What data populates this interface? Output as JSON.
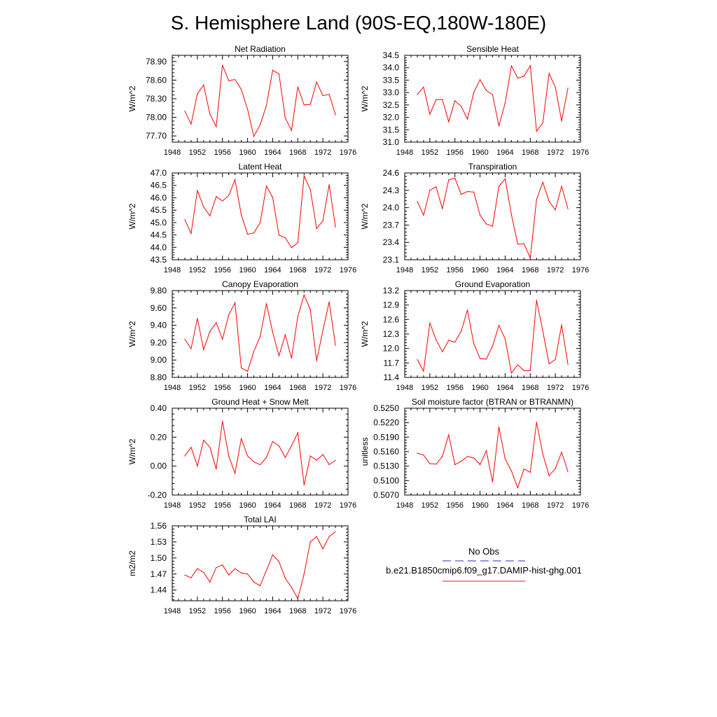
{
  "title": "S. Hemisphere Land (90S-EQ,180W-180E)",
  "legend": {
    "items": [
      {
        "label": "No Obs",
        "color": "#2b2bd0",
        "dash": "dashed"
      },
      {
        "label": "b.e21.B1850cmip6.f09_g17.DAMIP-hist-ghg.001",
        "color": "#e31a1c",
        "dash": "solid"
      }
    ]
  },
  "chart_data": [
    {
      "type": "line",
      "title": "Net Radiation",
      "ylabel": "W/m^2",
      "xlim": [
        1948,
        1976
      ],
      "xticks": [
        1948,
        1952,
        1956,
        1960,
        1964,
        1968,
        1972,
        1976
      ],
      "ylim": [
        77.6,
        79.0
      ],
      "yticks": [
        "77.70",
        "78.00",
        "78.30",
        "78.60",
        "78.90"
      ],
      "x": [
        1950,
        1951,
        1952,
        1953,
        1954,
        1955,
        1956,
        1957,
        1958,
        1959,
        1960,
        1961,
        1962,
        1963,
        1964,
        1965,
        1966,
        1967,
        1968,
        1969,
        1970,
        1971,
        1972,
        1973,
        1974
      ],
      "series": [
        {
          "color": "#ff0000",
          "values": [
            78.1,
            77.89,
            78.38,
            78.52,
            78.05,
            77.85,
            78.84,
            78.59,
            78.61,
            78.45,
            78.13,
            77.69,
            77.88,
            78.19,
            78.76,
            78.7,
            77.99,
            77.79,
            78.49,
            78.2,
            78.21,
            78.57,
            78.35,
            78.37,
            78.04
          ]
        }
      ]
    },
    {
      "type": "line",
      "title": "Sensible Heat",
      "ylabel": "W/m^2",
      "xlim": [
        1948,
        1976
      ],
      "xticks": [
        1948,
        1952,
        1956,
        1960,
        1964,
        1968,
        1972,
        1976
      ],
      "ylim": [
        31.0,
        34.5
      ],
      "yticks": [
        "31.0",
        "31.5",
        "32.0",
        "32.5",
        "33.0",
        "33.5",
        "34.0",
        "34.5"
      ],
      "x": [
        1950,
        1951,
        1952,
        1953,
        1954,
        1955,
        1956,
        1957,
        1958,
        1959,
        1960,
        1961,
        1962,
        1963,
        1964,
        1965,
        1966,
        1967,
        1968,
        1969,
        1970,
        1971,
        1972,
        1973,
        1974
      ],
      "series": [
        {
          "color": "#ff0000",
          "values": [
            32.92,
            33.22,
            32.13,
            32.71,
            32.72,
            31.82,
            32.67,
            32.44,
            31.93,
            33.0,
            33.52,
            33.08,
            32.92,
            31.65,
            32.57,
            34.08,
            33.58,
            33.66,
            34.08,
            31.44,
            31.78,
            33.77,
            33.21,
            31.85,
            33.18
          ]
        }
      ]
    },
    {
      "type": "line",
      "title": "Latent Heat",
      "ylabel": "W/m^2",
      "xlim": [
        1948,
        1976
      ],
      "xticks": [
        1948,
        1952,
        1956,
        1960,
        1964,
        1968,
        1972,
        1976
      ],
      "ylim": [
        43.5,
        47.0
      ],
      "yticks": [
        "43.5",
        "44.0",
        "44.5",
        "45.0",
        "45.5",
        "46.0",
        "46.5",
        "47.0"
      ],
      "x": [
        1950,
        1951,
        1952,
        1953,
        1954,
        1955,
        1956,
        1957,
        1958,
        1959,
        1960,
        1961,
        1962,
        1963,
        1964,
        1965,
        1966,
        1967,
        1968,
        1969,
        1970,
        1971,
        1972,
        1973,
        1974
      ],
      "series": [
        {
          "color": "#ff0000",
          "values": [
            45.12,
            44.56,
            46.29,
            45.63,
            45.27,
            46.05,
            45.87,
            46.09,
            46.73,
            45.31,
            44.53,
            44.58,
            44.99,
            46.47,
            46.01,
            44.49,
            44.39,
            43.99,
            44.19,
            46.88,
            46.33,
            44.76,
            45.07,
            46.53,
            44.82
          ]
        }
      ]
    },
    {
      "type": "line",
      "title": "Transpiration",
      "ylabel": "W/m^2",
      "xlim": [
        1948,
        1976
      ],
      "xticks": [
        1948,
        1952,
        1956,
        1960,
        1964,
        1968,
        1972,
        1976
      ],
      "ylim": [
        23.1,
        24.6
      ],
      "yticks": [
        "23.1",
        "23.4",
        "23.7",
        "24.0",
        "24.3",
        "24.6"
      ],
      "x": [
        1950,
        1951,
        1952,
        1953,
        1954,
        1955,
        1956,
        1957,
        1958,
        1959,
        1960,
        1961,
        1962,
        1963,
        1964,
        1965,
        1966,
        1967,
        1968,
        1969,
        1970,
        1971,
        1972,
        1973,
        1974
      ],
      "series": [
        {
          "color": "#ff0000",
          "values": [
            24.11,
            23.87,
            24.3,
            24.36,
            23.98,
            24.48,
            24.51,
            24.23,
            24.28,
            24.27,
            23.87,
            23.72,
            23.68,
            24.37,
            24.5,
            23.88,
            23.37,
            23.38,
            23.13,
            24.14,
            24.44,
            24.11,
            23.96,
            24.37,
            23.98
          ]
        }
      ]
    },
    {
      "type": "line",
      "title": "Canopy Evaporation",
      "ylabel": "W/m^2",
      "xlim": [
        1948,
        1976
      ],
      "xticks": [
        1948,
        1952,
        1956,
        1960,
        1964,
        1968,
        1972,
        1976
      ],
      "ylim": [
        8.8,
        9.8
      ],
      "yticks": [
        "8.80",
        "9.00",
        "9.20",
        "9.40",
        "9.60",
        "9.80"
      ],
      "x": [
        1950,
        1951,
        1952,
        1953,
        1954,
        1955,
        1956,
        1957,
        1958,
        1959,
        1960,
        1961,
        1962,
        1963,
        1964,
        1965,
        1966,
        1967,
        1968,
        1969,
        1970,
        1971,
        1972,
        1973,
        1974
      ],
      "series": [
        {
          "color": "#ff0000",
          "values": [
            9.24,
            9.13,
            9.48,
            9.12,
            9.33,
            9.43,
            9.24,
            9.52,
            9.66,
            8.91,
            8.87,
            9.1,
            9.27,
            9.65,
            9.32,
            9.05,
            9.29,
            9.02,
            9.5,
            9.75,
            9.58,
            8.99,
            9.34,
            9.67,
            9.17
          ]
        }
      ]
    },
    {
      "type": "line",
      "title": "Ground Evaporation",
      "ylabel": "W/m^2",
      "xlim": [
        1948,
        1976
      ],
      "xticks": [
        1948,
        1952,
        1956,
        1960,
        1964,
        1968,
        1972,
        1976
      ],
      "ylim": [
        11.4,
        13.2
      ],
      "yticks": [
        "11.4",
        "11.7",
        "12.0",
        "12.3",
        "12.6",
        "12.9",
        "13.2"
      ],
      "x": [
        1950,
        1951,
        1952,
        1953,
        1954,
        1955,
        1956,
        1957,
        1958,
        1959,
        1960,
        1961,
        1962,
        1963,
        1964,
        1965,
        1966,
        1967,
        1968,
        1969,
        1970,
        1971,
        1972,
        1973,
        1974
      ],
      "series": [
        {
          "color": "#ff0000",
          "values": [
            11.77,
            11.53,
            12.53,
            12.18,
            11.93,
            12.17,
            12.13,
            12.36,
            12.8,
            12.1,
            11.79,
            11.78,
            12.05,
            12.48,
            12.2,
            11.49,
            11.66,
            11.54,
            11.54,
            13.0,
            12.36,
            11.68,
            11.77,
            12.49,
            11.67
          ]
        }
      ]
    },
    {
      "type": "line",
      "title": "Ground Heat + Snow Melt",
      "ylabel": "W/m^2",
      "xlim": [
        1948,
        1976
      ],
      "xticks": [
        1948,
        1952,
        1956,
        1960,
        1964,
        1968,
        1972,
        1976
      ],
      "ylim": [
        -0.2,
        0.4
      ],
      "yticks": [
        "-0.20",
        "0.00",
        "0.20",
        "0.40"
      ],
      "x": [
        1950,
        1951,
        1952,
        1953,
        1954,
        1955,
        1956,
        1957,
        1958,
        1959,
        1960,
        1961,
        1962,
        1963,
        1964,
        1965,
        1966,
        1967,
        1968,
        1969,
        1970,
        1971,
        1972,
        1973,
        1974
      ],
      "series": [
        {
          "color": "#ff0000",
          "values": [
            0.07,
            0.13,
            0.0,
            0.18,
            0.13,
            -0.02,
            0.31,
            0.07,
            -0.05,
            0.19,
            0.07,
            0.03,
            0.01,
            0.06,
            0.17,
            0.14,
            0.06,
            0.14,
            0.23,
            -0.13,
            0.07,
            0.04,
            0.08,
            0.01,
            0.04
          ]
        }
      ]
    },
    {
      "type": "line",
      "title": "Soil moisture factor (BTRAN or BTRANMN)",
      "ylabel": "unitless",
      "xlim": [
        1948,
        1976
      ],
      "xticks": [
        1948,
        1952,
        1956,
        1960,
        1964,
        1968,
        1972,
        1976
      ],
      "ylim": [
        0.507,
        0.525
      ],
      "yticks": [
        "0.5070",
        "0.5100",
        "0.5130",
        "0.5160",
        "0.5190",
        "0.5220",
        "0.5250"
      ],
      "x": [
        1950,
        1951,
        1952,
        1953,
        1954,
        1955,
        1956,
        1957,
        1958,
        1959,
        1960,
        1961,
        1962,
        1963,
        1964,
        1965,
        1966,
        1967,
        1968,
        1969,
        1970,
        1971,
        1972,
        1973,
        1974
      ],
      "series": [
        {
          "color": "#ff0000",
          "values": [
            0.5157,
            0.5153,
            0.5135,
            0.5134,
            0.515,
            0.5195,
            0.5133,
            0.514,
            0.515,
            0.5147,
            0.5133,
            0.5162,
            0.5097,
            0.5211,
            0.5145,
            0.512,
            0.5085,
            0.5124,
            0.5117,
            0.5221,
            0.5155,
            0.511,
            0.5125,
            0.5159,
            0.5118
          ]
        }
      ]
    },
    {
      "type": "line",
      "title": "Total LAI",
      "ylabel": "m2/m2",
      "xlim": [
        1948,
        1976
      ],
      "xticks": [
        1948,
        1952,
        1956,
        1960,
        1964,
        1968,
        1972,
        1976
      ],
      "ylim": [
        1.42,
        1.56
      ],
      "yticks": [
        "1.44",
        "1.47",
        "1.50",
        "1.53",
        "1.56"
      ],
      "x": [
        1950,
        1951,
        1952,
        1953,
        1954,
        1955,
        1956,
        1957,
        1958,
        1959,
        1960,
        1961,
        1962,
        1963,
        1964,
        1965,
        1966,
        1967,
        1968,
        1969,
        1970,
        1971,
        1972,
        1973,
        1974
      ],
      "series": [
        {
          "color": "#ff0000",
          "values": [
            1.468,
            1.463,
            1.48,
            1.473,
            1.455,
            1.482,
            1.487,
            1.468,
            1.48,
            1.472,
            1.47,
            1.455,
            1.448,
            1.477,
            1.506,
            1.493,
            1.462,
            1.445,
            1.424,
            1.47,
            1.53,
            1.54,
            1.517,
            1.54,
            1.549
          ]
        }
      ]
    }
  ]
}
